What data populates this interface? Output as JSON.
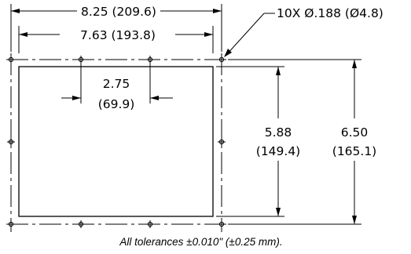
{
  "dimensions": {
    "overall_width": "8.25 (209.6)",
    "hole_spacing": "7.63 (193.8)",
    "holes": "10X Ø.188 (Ø4.8)",
    "pitch_top": "2.75",
    "pitch_bottom": "(69.9)",
    "cutout_height_top": "5.88",
    "cutout_height_bottom": "(149.4)",
    "overall_height_top": "6.50",
    "overall_height_bottom": "(165.1)"
  },
  "note": "All tolerances ±0.010\" (±0.25 mm)."
}
